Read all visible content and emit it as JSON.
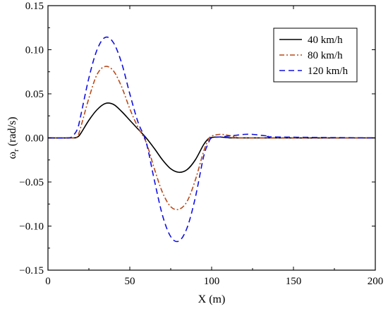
{
  "chart_data": {
    "type": "line",
    "title": "",
    "xlabel": "X (m)",
    "ylabel": {
      "main": "ω",
      "subscript": "r",
      "unit": " (rad/s)"
    },
    "xlim": [
      0,
      200
    ],
    "ylim": [
      -0.15,
      0.15
    ],
    "x_ticks": [
      0,
      50,
      100,
      150,
      200
    ],
    "x_tick_labels": [
      "0",
      "50",
      "100",
      "150",
      "200"
    ],
    "y_ticks": [
      -0.15,
      -0.1,
      -0.05,
      0.0,
      0.05,
      0.1,
      0.15
    ],
    "y_tick_labels": [
      "−0.15",
      "−0.10",
      "−0.05",
      "0.00",
      "0.05",
      "0.10",
      "0.15"
    ],
    "grid": false,
    "legend_position": "top-right",
    "series": [
      {
        "name": "40 km/h",
        "color": "#000000",
        "dash": "solid",
        "x": [
          0,
          15,
          18,
          20,
          25,
          30,
          35,
          40,
          45,
          50,
          55,
          60,
          65,
          70,
          75,
          80,
          85,
          90,
          95,
          98,
          100,
          105,
          110,
          120,
          200
        ],
        "y": [
          0,
          0,
          0.001,
          0.005,
          0.02,
          0.032,
          0.039,
          0.038,
          0.03,
          0.02,
          0.01,
          0.0,
          -0.012,
          -0.025,
          -0.035,
          -0.039,
          -0.036,
          -0.025,
          -0.008,
          -0.001,
          0.0005,
          0.001,
          0.0003,
          0,
          0
        ]
      },
      {
        "name": "80 km/h",
        "color": "#b84a1a",
        "dash": "dash-dot",
        "x": [
          0,
          15,
          18,
          20,
          25,
          30,
          35,
          40,
          45,
          50,
          55,
          60,
          65,
          70,
          75,
          80,
          85,
          90,
          95,
          98,
          100,
          105,
          110,
          115,
          120,
          200
        ],
        "y": [
          0,
          0,
          0.002,
          0.012,
          0.045,
          0.072,
          0.081,
          0.076,
          0.058,
          0.033,
          0.012,
          -0.005,
          -0.035,
          -0.062,
          -0.078,
          -0.081,
          -0.072,
          -0.048,
          -0.016,
          -0.002,
          0.002,
          0.004,
          0.003,
          0.001,
          0,
          0
        ]
      },
      {
        "name": "120 km/h",
        "color": "#1010e0",
        "dash": "dashed",
        "x": [
          0,
          12,
          15,
          18,
          20,
          25,
          30,
          35,
          40,
          45,
          50,
          55,
          60,
          65,
          70,
          75,
          80,
          85,
          90,
          95,
          98,
          100,
          105,
          110,
          115,
          120,
          125,
          130,
          135,
          140,
          200
        ],
        "y": [
          0,
          0,
          0.002,
          0.01,
          0.025,
          0.068,
          0.1,
          0.114,
          0.108,
          0.085,
          0.05,
          0.018,
          -0.005,
          -0.048,
          -0.088,
          -0.112,
          -0.117,
          -0.102,
          -0.068,
          -0.022,
          -0.006,
          0.0,
          0.001,
          0.002,
          0.003,
          0.004,
          0.004,
          0.003,
          0.002,
          0.001,
          0
        ]
      }
    ]
  }
}
